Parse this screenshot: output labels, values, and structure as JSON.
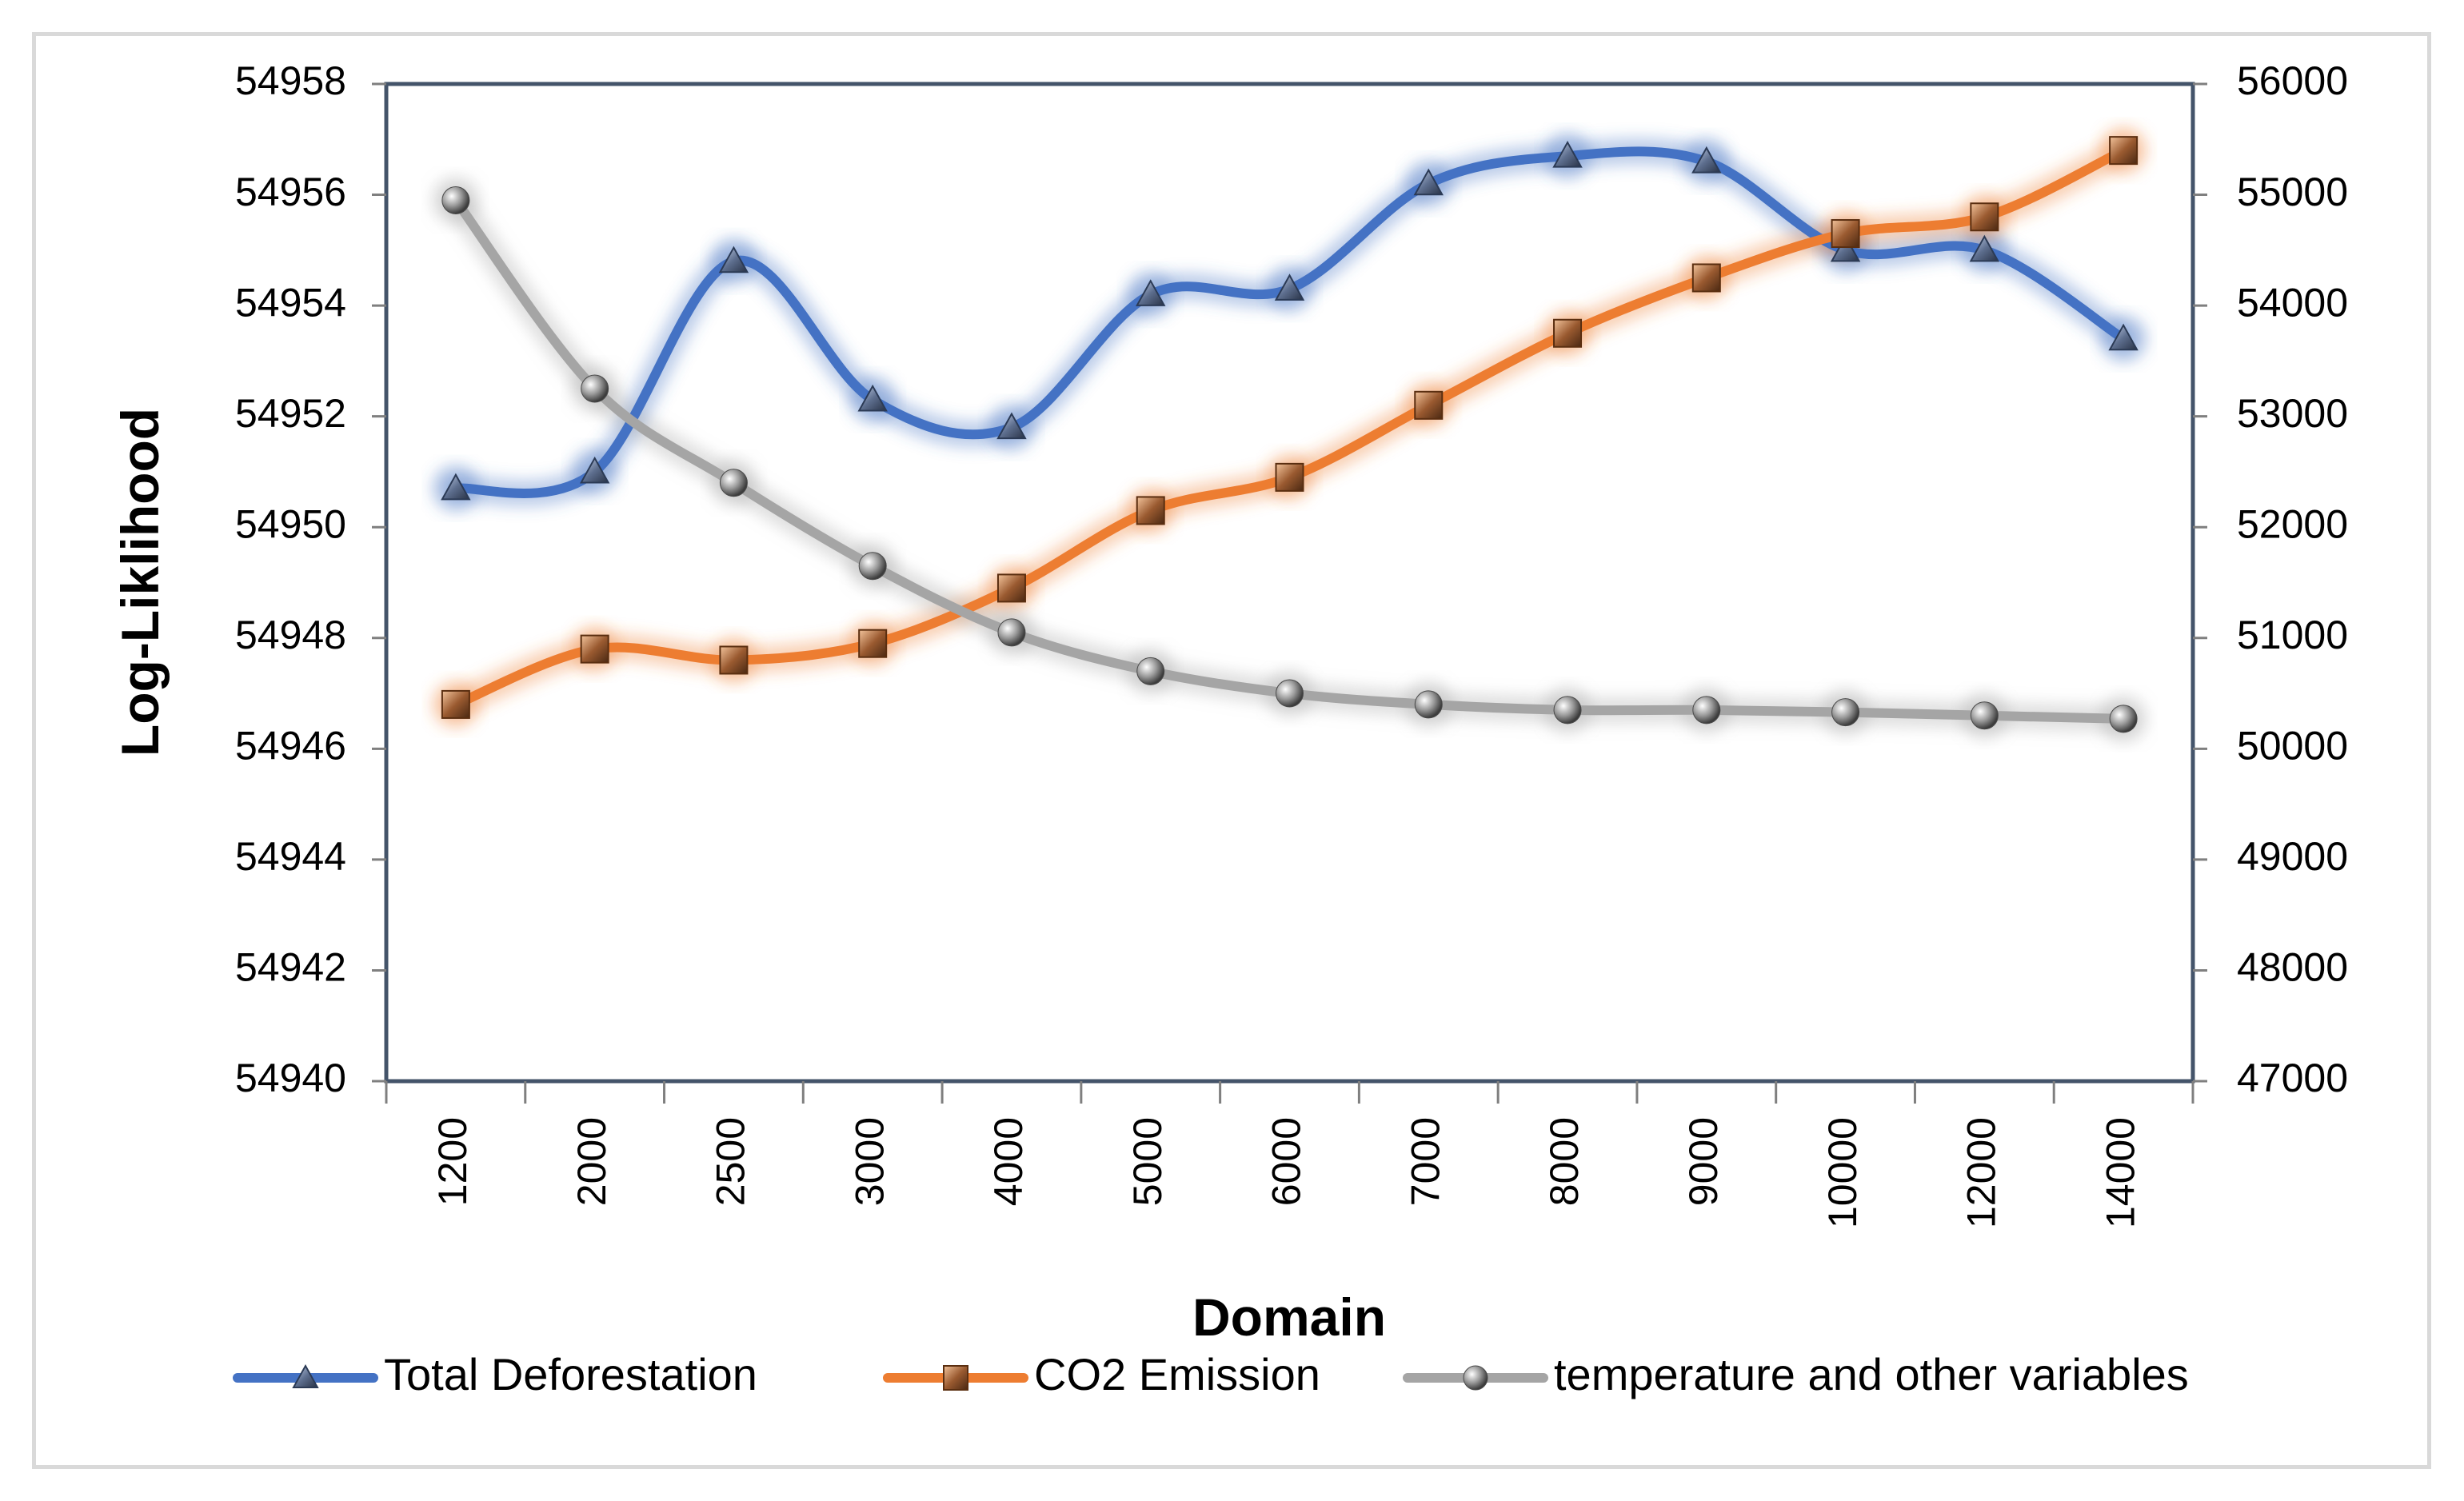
{
  "chart_data": {
    "type": "line",
    "title": "",
    "xlabel": "Domain",
    "ylabel": "Log-Liklihood",
    "categories": [
      "1200",
      "2000",
      "2500",
      "3000",
      "4000",
      "5000",
      "6000",
      "7000",
      "8000",
      "9000",
      "10000",
      "12000",
      "14000"
    ],
    "ylim_left": [
      54940,
      54958
    ],
    "yticks_left": [
      54940,
      54942,
      54944,
      54946,
      54948,
      54950,
      54952,
      54954,
      54956,
      54958
    ],
    "ylim_right": [
      47000,
      56000
    ],
    "yticks_right": [
      47000,
      48000,
      49000,
      50000,
      51000,
      52000,
      53000,
      54000,
      55000,
      56000
    ],
    "grid": false,
    "legend_position": "bottom",
    "series": [
      {
        "name": "Total Deforestation",
        "axis": "left",
        "color": "#4472c4",
        "marker": "triangle",
        "values": [
          54950.7,
          54951.0,
          54954.8,
          54952.3,
          54951.8,
          54954.2,
          54954.3,
          54956.2,
          54956.7,
          54956.6,
          54955.0,
          54955.0,
          54953.4
        ]
      },
      {
        "name": "CO2 Emission",
        "axis": "left",
        "color": "#ed7d31",
        "marker": "square",
        "values": [
          54946.8,
          54947.8,
          54947.6,
          54947.9,
          54948.9,
          54950.3,
          54950.9,
          54952.2,
          54953.5,
          54954.5,
          54955.3,
          54955.6,
          54956.8
        ]
      },
      {
        "name": "temperature and other variables",
        "axis": "right",
        "color": "#a5a5a5",
        "marker": "circle",
        "values": [
          54950,
          53250,
          52400,
          51650,
          51050,
          50700,
          50500,
          50400,
          50350,
          50350,
          50330,
          50300,
          50270
        ]
      }
    ]
  }
}
